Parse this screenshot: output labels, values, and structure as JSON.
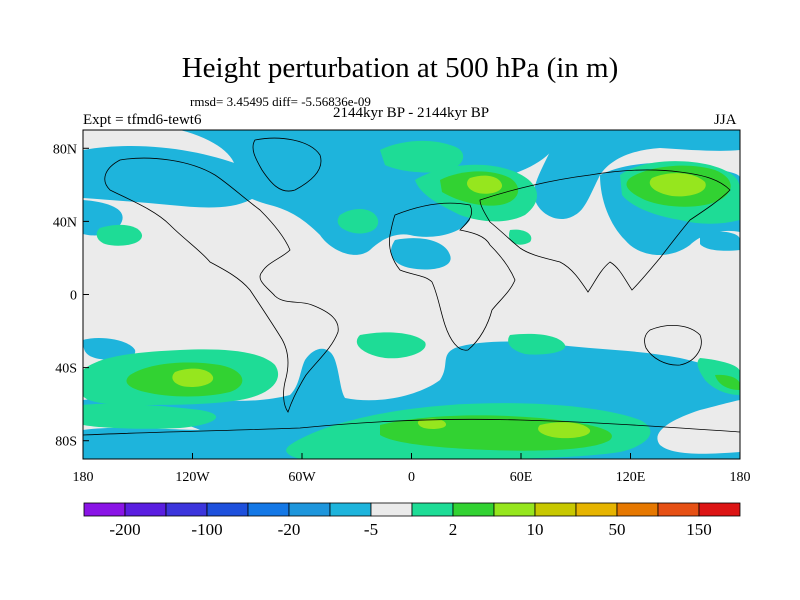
{
  "title": "Height perturbation at 500 hPa (in m)",
  "stats": "rmsd= 3.45495 diff= -5.56836e-09",
  "experiment": "Expt = tfmd6-tewt6",
  "period": "2144kyr BP - 2144kyr BP",
  "season": "JJA",
  "lat_ticks": [
    {
      "label": "80N",
      "value": 80
    },
    {
      "label": "40N",
      "value": 40
    },
    {
      "label": "0",
      "value": 0
    },
    {
      "label": "40S",
      "value": -40
    },
    {
      "label": "80S",
      "value": -80
    }
  ],
  "lon_ticks": [
    {
      "label": "180",
      "value": -180
    },
    {
      "label": "120W",
      "value": -120
    },
    {
      "label": "60W",
      "value": -60
    },
    {
      "label": "0",
      "value": 0
    },
    {
      "label": "60E",
      "value": 60
    },
    {
      "label": "120E",
      "value": 120
    },
    {
      "label": "180",
      "value": 180
    }
  ],
  "colorbar": {
    "colors": [
      "#8a14e6",
      "#5a1ee0",
      "#3c35dc",
      "#1e50dc",
      "#1478e6",
      "#1e96dc",
      "#1eb4dc",
      "#ebebeb",
      "#1edc96",
      "#32d232",
      "#96e61e",
      "#c8c800",
      "#e6b400",
      "#e67800",
      "#e65014",
      "#dc1414"
    ],
    "labels": [
      {
        "text": "-200",
        "boundary": 1
      },
      {
        "text": "-100",
        "boundary": 3
      },
      {
        "text": "-20",
        "boundary": 5
      },
      {
        "text": "-5",
        "boundary": 7
      },
      {
        "text": "2",
        "boundary": 9
      },
      {
        "text": "10",
        "boundary": 11
      },
      {
        "text": "50",
        "boundary": 13
      },
      {
        "text": "150",
        "boundary": 15
      }
    ]
  },
  "field_colors": {
    "neutral": "#ebebeb",
    "cyan": "#1eb4dc",
    "blue": "#1e96dc",
    "teal": "#1edc96",
    "green": "#32d232",
    "yellowgreen": "#96e61e",
    "yellow": "#c8c800"
  }
}
